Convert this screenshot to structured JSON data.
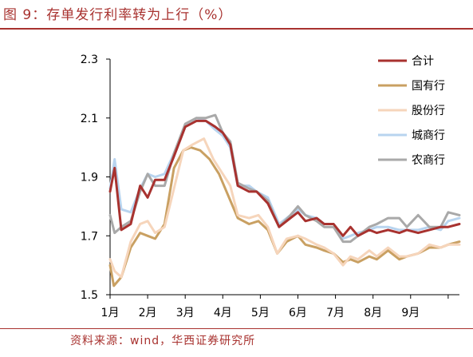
{
  "title": "图 9：存单发行利率转为上行（%）",
  "source": "资料来源：wind，华西证券研究所",
  "chart_data": {
    "type": "line",
    "title": "图 9：存单发行利率转为上行（%）",
    "ylim": [
      1.5,
      2.3
    ],
    "yticks": [
      "1.5",
      "1.7",
      "1.9",
      "2.1",
      "2.3"
    ],
    "x_range": [
      0,
      9.3
    ],
    "month_labels": [
      "1月",
      "2月",
      "3月",
      "4月",
      "5月",
      "6月",
      "7月",
      "8月",
      "9月"
    ],
    "legend_position": "top-right",
    "grid": false,
    "series": [
      {
        "name": "合计",
        "color": "#a8322f",
        "values": [
          [
            0,
            1.85
          ],
          [
            0.12,
            1.93
          ],
          [
            0.3,
            1.72
          ],
          [
            0.55,
            1.74
          ],
          [
            0.8,
            1.87
          ],
          [
            1.0,
            1.83
          ],
          [
            1.2,
            1.89
          ],
          [
            1.45,
            1.89
          ],
          [
            1.7,
            1.97
          ],
          [
            2.0,
            2.07
          ],
          [
            2.3,
            2.09
          ],
          [
            2.55,
            2.09
          ],
          [
            2.8,
            2.07
          ],
          [
            3.0,
            2.05
          ],
          [
            3.2,
            2.01
          ],
          [
            3.4,
            1.87
          ],
          [
            3.7,
            1.85
          ],
          [
            3.9,
            1.85
          ],
          [
            4.2,
            1.81
          ],
          [
            4.5,
            1.73
          ],
          [
            4.8,
            1.76
          ],
          [
            5.0,
            1.78
          ],
          [
            5.2,
            1.75
          ],
          [
            5.5,
            1.76
          ],
          [
            5.7,
            1.74
          ],
          [
            5.95,
            1.74
          ],
          [
            6.2,
            1.7
          ],
          [
            6.4,
            1.73
          ],
          [
            6.6,
            1.7
          ],
          [
            6.9,
            1.72
          ],
          [
            7.1,
            1.71
          ],
          [
            7.4,
            1.72
          ],
          [
            7.7,
            1.71
          ],
          [
            7.9,
            1.72
          ],
          [
            8.2,
            1.71
          ],
          [
            8.5,
            1.72
          ],
          [
            8.8,
            1.73
          ],
          [
            9.0,
            1.73
          ],
          [
            9.3,
            1.74
          ]
        ]
      },
      {
        "name": "国有行",
        "color": "#c9a062",
        "values": [
          [
            0,
            1.6
          ],
          [
            0.1,
            1.53
          ],
          [
            0.3,
            1.56
          ],
          [
            0.55,
            1.66
          ],
          [
            0.8,
            1.71
          ],
          [
            1.0,
            1.7
          ],
          [
            1.2,
            1.69
          ],
          [
            1.45,
            1.74
          ],
          [
            1.7,
            1.93
          ],
          [
            1.95,
            1.99
          ],
          [
            2.15,
            2.0
          ],
          [
            2.4,
            1.99
          ],
          [
            2.65,
            1.96
          ],
          [
            2.9,
            1.91
          ],
          [
            3.1,
            1.85
          ],
          [
            3.4,
            1.76
          ],
          [
            3.7,
            1.74
          ],
          [
            3.95,
            1.75
          ],
          [
            4.2,
            1.72
          ],
          [
            4.45,
            1.64
          ],
          [
            4.7,
            1.68
          ],
          [
            5.0,
            1.7
          ],
          [
            5.2,
            1.67
          ],
          [
            5.5,
            1.66
          ],
          [
            5.7,
            1.65
          ],
          [
            5.95,
            1.64
          ],
          [
            6.2,
            1.61
          ],
          [
            6.4,
            1.62
          ],
          [
            6.6,
            1.61
          ],
          [
            6.9,
            1.63
          ],
          [
            7.1,
            1.62
          ],
          [
            7.4,
            1.65
          ],
          [
            7.7,
            1.62
          ],
          [
            7.9,
            1.63
          ],
          [
            8.2,
            1.64
          ],
          [
            8.5,
            1.66
          ],
          [
            8.8,
            1.66
          ],
          [
            9.0,
            1.67
          ],
          [
            9.3,
            1.68
          ]
        ]
      },
      {
        "name": "股份行",
        "color": "#f6d5bb",
        "values": [
          [
            0,
            1.62
          ],
          [
            0.12,
            1.58
          ],
          [
            0.3,
            1.56
          ],
          [
            0.55,
            1.68
          ],
          [
            0.8,
            1.74
          ],
          [
            1.0,
            1.75
          ],
          [
            1.2,
            1.71
          ],
          [
            1.45,
            1.73
          ],
          [
            1.7,
            1.86
          ],
          [
            1.95,
            1.99
          ],
          [
            2.2,
            2.01
          ],
          [
            2.5,
            2.03
          ],
          [
            2.75,
            1.96
          ],
          [
            3.0,
            1.91
          ],
          [
            3.2,
            1.87
          ],
          [
            3.4,
            1.77
          ],
          [
            3.7,
            1.76
          ],
          [
            3.95,
            1.77
          ],
          [
            4.2,
            1.73
          ],
          [
            4.45,
            1.64
          ],
          [
            4.7,
            1.69
          ],
          [
            5.0,
            1.7
          ],
          [
            5.2,
            1.69
          ],
          [
            5.5,
            1.67
          ],
          [
            5.7,
            1.66
          ],
          [
            5.95,
            1.64
          ],
          [
            6.2,
            1.6
          ],
          [
            6.4,
            1.63
          ],
          [
            6.6,
            1.62
          ],
          [
            6.9,
            1.65
          ],
          [
            7.1,
            1.63
          ],
          [
            7.4,
            1.66
          ],
          [
            7.7,
            1.63
          ],
          [
            7.9,
            1.63
          ],
          [
            8.2,
            1.64
          ],
          [
            8.5,
            1.67
          ],
          [
            8.8,
            1.66
          ],
          [
            9.0,
            1.67
          ],
          [
            9.3,
            1.67
          ]
        ]
      },
      {
        "name": "城商行",
        "color": "#b8d4ef",
        "values": [
          [
            0,
            1.86
          ],
          [
            0.12,
            1.96
          ],
          [
            0.3,
            1.79
          ],
          [
            0.55,
            1.78
          ],
          [
            0.8,
            1.86
          ],
          [
            1.0,
            1.91
          ],
          [
            1.2,
            1.9
          ],
          [
            1.45,
            1.91
          ],
          [
            1.7,
            1.98
          ],
          [
            2.0,
            2.07
          ],
          [
            2.3,
            2.1
          ],
          [
            2.55,
            2.09
          ],
          [
            2.8,
            2.06
          ],
          [
            3.0,
            2.04
          ],
          [
            3.2,
            2.0
          ],
          [
            3.4,
            1.87
          ],
          [
            3.7,
            1.87
          ],
          [
            3.9,
            1.85
          ],
          [
            4.2,
            1.83
          ],
          [
            4.5,
            1.74
          ],
          [
            4.8,
            1.77
          ],
          [
            5.0,
            1.79
          ],
          [
            5.2,
            1.77
          ],
          [
            5.5,
            1.76
          ],
          [
            5.7,
            1.74
          ],
          [
            5.95,
            1.74
          ],
          [
            6.2,
            1.69
          ],
          [
            6.4,
            1.7
          ],
          [
            6.6,
            1.71
          ],
          [
            6.9,
            1.72
          ],
          [
            7.1,
            1.73
          ],
          [
            7.4,
            1.73
          ],
          [
            7.7,
            1.72
          ],
          [
            7.9,
            1.72
          ],
          [
            8.2,
            1.72
          ],
          [
            8.5,
            1.73
          ],
          [
            8.8,
            1.72
          ],
          [
            9.0,
            1.75
          ],
          [
            9.3,
            1.76
          ]
        ]
      },
      {
        "name": "农商行",
        "color": "#a9a9a9",
        "values": [
          [
            0,
            1.77
          ],
          [
            0.12,
            1.71
          ],
          [
            0.3,
            1.73
          ],
          [
            0.55,
            1.75
          ],
          [
            0.8,
            1.85
          ],
          [
            1.0,
            1.91
          ],
          [
            1.2,
            1.87
          ],
          [
            1.45,
            1.87
          ],
          [
            1.7,
            1.98
          ],
          [
            2.0,
            2.08
          ],
          [
            2.3,
            2.1
          ],
          [
            2.55,
            2.1
          ],
          [
            2.8,
            2.11
          ],
          [
            3.0,
            2.05
          ],
          [
            3.2,
            2.02
          ],
          [
            3.4,
            1.88
          ],
          [
            3.7,
            1.86
          ],
          [
            3.9,
            1.85
          ],
          [
            4.2,
            1.82
          ],
          [
            4.5,
            1.73
          ],
          [
            4.8,
            1.77
          ],
          [
            5.0,
            1.8
          ],
          [
            5.2,
            1.77
          ],
          [
            5.5,
            1.75
          ],
          [
            5.7,
            1.73
          ],
          [
            5.95,
            1.73
          ],
          [
            6.2,
            1.68
          ],
          [
            6.4,
            1.68
          ],
          [
            6.6,
            1.7
          ],
          [
            6.9,
            1.73
          ],
          [
            7.1,
            1.74
          ],
          [
            7.4,
            1.76
          ],
          [
            7.7,
            1.76
          ],
          [
            7.9,
            1.73
          ],
          [
            8.2,
            1.77
          ],
          [
            8.5,
            1.73
          ],
          [
            8.8,
            1.73
          ],
          [
            9.0,
            1.78
          ],
          [
            9.3,
            1.77
          ]
        ]
      }
    ]
  }
}
